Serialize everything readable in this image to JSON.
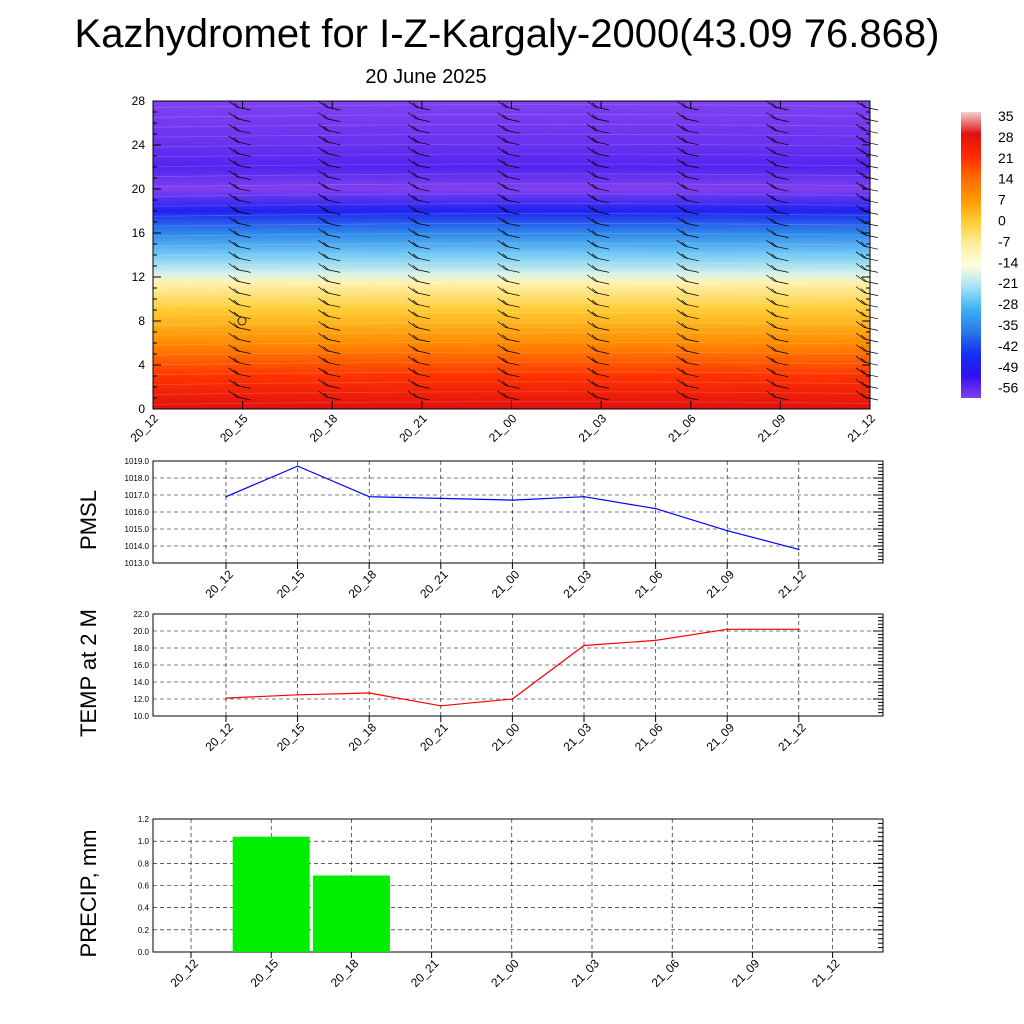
{
  "title": "Kazhydromet for I-Z-Kargaly-2000(43.09 76.868)",
  "subtitle": "20 June 2025",
  "chart_data": [
    {
      "type": "heatmap",
      "name": "temperature cross-section",
      "x_categories": [
        "20_12",
        "20_15",
        "20_18",
        "20_21",
        "21_00",
        "21_03",
        "21_06",
        "21_09",
        "21_12"
      ],
      "y_ticks": [
        "0",
        "4",
        "8",
        "12",
        "16",
        "20",
        "24",
        "28"
      ],
      "ylim": [
        0,
        28
      ],
      "colorbar_labels": [
        "35",
        "28",
        "21",
        "14",
        "7",
        "0",
        "-7",
        "-14",
        "-21",
        "-28",
        "-35",
        "-42",
        "-49",
        "-56"
      ],
      "color_stops": [
        {
          "value": 35,
          "color": "#f2d0d0"
        },
        {
          "value": 28,
          "color": "#e01010"
        },
        {
          "value": 21,
          "color": "#ff2a00"
        },
        {
          "value": 14,
          "color": "#ff6a00"
        },
        {
          "value": 7,
          "color": "#ff9a00"
        },
        {
          "value": 0,
          "color": "#ffcc33"
        },
        {
          "value": -7,
          "color": "#ffeea0"
        },
        {
          "value": -14,
          "color": "#fffde0"
        },
        {
          "value": -21,
          "color": "#9fe0f8"
        },
        {
          "value": -28,
          "color": "#3ab0f0"
        },
        {
          "value": -35,
          "color": "#2878e8"
        },
        {
          "value": -42,
          "color": "#1430f0"
        },
        {
          "value": -49,
          "color": "#3010f0"
        },
        {
          "value": -56,
          "color": "#8040f0"
        }
      ]
    },
    {
      "type": "line",
      "ylabel": "PMSL",
      "categories": [
        "20_12",
        "20_15",
        "20_18",
        "20_21",
        "21_00",
        "21_03",
        "21_06",
        "21_09",
        "21_12"
      ],
      "ylim": [
        1013.0,
        1019.0
      ],
      "yticks": [
        "1019.0",
        "1018.0",
        "1017.0",
        "1016.0",
        "1015.0",
        "1014.0",
        "1013.0"
      ],
      "series": [
        {
          "values": [
            1016.9,
            1018.7,
            1016.9,
            1016.8,
            1016.7,
            1016.9,
            1016.2,
            1014.9,
            1013.8
          ],
          "color": "#0000ff"
        }
      ],
      "grid": true
    },
    {
      "type": "line",
      "ylabel": "TEMP at 2 M",
      "categories": [
        "20_12",
        "20_15",
        "20_18",
        "20_21",
        "21_00",
        "21_03",
        "21_06",
        "21_09",
        "21_12"
      ],
      "ylim": [
        10.0,
        22.0
      ],
      "yticks": [
        "22.0",
        "20.0",
        "18.0",
        "16.0",
        "14.0",
        "12.0",
        "10.0"
      ],
      "series": [
        {
          "values": [
            12.1,
            12.5,
            12.7,
            11.2,
            12.0,
            18.3,
            18.9,
            20.2,
            20.2
          ],
          "color": "#ff0000"
        }
      ],
      "grid": true
    },
    {
      "type": "bar",
      "ylabel": "PRECIP, mm",
      "categories": [
        "20_12",
        "20_15",
        "20_18",
        "20_21",
        "21_00",
        "21_03",
        "21_06",
        "21_09",
        "21_12"
      ],
      "ylim": [
        0.0,
        1.2
      ],
      "yticks": [
        "1.2",
        "1.0",
        "0.8",
        "0.6",
        "0.4",
        "0.2",
        "0.0"
      ],
      "values": [
        0,
        1.04,
        0.69,
        0,
        0,
        0,
        0,
        0,
        0
      ],
      "color": "#00ee00",
      "grid": true
    }
  ]
}
